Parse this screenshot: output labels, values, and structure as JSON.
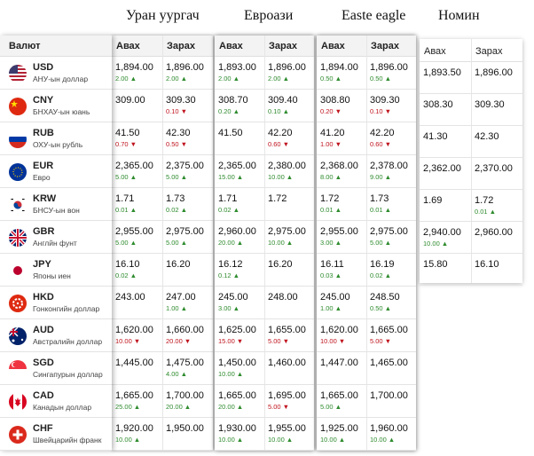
{
  "banks": [
    {
      "name": "Уран уургач"
    },
    {
      "name": "Евроази"
    },
    {
      "name": "Easte eagle"
    },
    {
      "name": "Номин"
    }
  ],
  "labels": {
    "currency_header": "Валют",
    "buy": "Авах",
    "sell": "Зарах"
  },
  "currencies": [
    {
      "code": "USD",
      "name": "АНУ-ын доллар",
      "flag": "us-flag-icon"
    },
    {
      "code": "CNY",
      "name": "БНХАУ-ын юань",
      "flag": "china-flag-icon"
    },
    {
      "code": "RUB",
      "name": "ОХУ-ын рубль",
      "flag": "russia-flag-icon"
    },
    {
      "code": "EUR",
      "name": "Евро",
      "flag": "eu-flag-icon"
    },
    {
      "code": "KRW",
      "name": "БНСУ-ын вон",
      "flag": "korea-flag-icon"
    },
    {
      "code": "GBR",
      "name": "Англйн фунт",
      "flag": "uk-flag-icon"
    },
    {
      "code": "JPY",
      "name": "Японы иен",
      "flag": "japan-flag-icon"
    },
    {
      "code": "HKD",
      "name": "Гонконгийн доллар",
      "flag": "hongkong-flag-icon"
    },
    {
      "code": "AUD",
      "name": "Австралийн доллар",
      "flag": "australia-flag-icon"
    },
    {
      "code": "SGD",
      "name": "Сингапурын доллар",
      "flag": "singapore-flag-icon"
    },
    {
      "code": "CAD",
      "name": "Канадын доллар",
      "flag": "canada-flag-icon"
    },
    {
      "code": "CHF",
      "name": "Швейцарийн франк",
      "flag": "swiss-flag-icon"
    }
  ],
  "rates": [
    [
      {
        "buy": "1,894.00",
        "bc": "2.00",
        "bd": "up",
        "sell": "1,896.00",
        "sc": "2.00",
        "sd": "up"
      },
      {
        "buy": "309.00",
        "bc": "",
        "bd": "",
        "sell": "309.30",
        "sc": "0.10",
        "sd": "down"
      },
      {
        "buy": "41.50",
        "bc": "0.70",
        "bd": "down",
        "sell": "42.30",
        "sc": "0.50",
        "sd": "down"
      },
      {
        "buy": "2,365.00",
        "bc": "5.00",
        "bd": "up",
        "sell": "2,375.00",
        "sc": "5.00",
        "sd": "up"
      },
      {
        "buy": "1.71",
        "bc": "0.01",
        "bd": "up",
        "sell": "1.73",
        "sc": "0.02",
        "sd": "up"
      },
      {
        "buy": "2,955.00",
        "bc": "5.00",
        "bd": "up",
        "sell": "2,975.00",
        "sc": "5.00",
        "sd": "up"
      },
      {
        "buy": "16.10",
        "bc": "0.02",
        "bd": "up",
        "sell": "16.20",
        "sc": "",
        "sd": ""
      },
      {
        "buy": "243.00",
        "bc": "",
        "bd": "",
        "sell": "247.00",
        "sc": "1.00",
        "sd": "up"
      },
      {
        "buy": "1,620.00",
        "bc": "10.00",
        "bd": "down",
        "sell": "1,660.00",
        "sc": "20.00",
        "sd": "down"
      },
      {
        "buy": "1,445.00",
        "bc": "",
        "bd": "",
        "sell": "1,475.00",
        "sc": "4.00",
        "sd": "up"
      },
      {
        "buy": "1,665.00",
        "bc": "25.00",
        "bd": "up",
        "sell": "1,700.00",
        "sc": "20.00",
        "sd": "up"
      },
      {
        "buy": "1,920.00",
        "bc": "10.00",
        "bd": "up",
        "sell": "1,950.00",
        "sc": "",
        "sd": ""
      }
    ],
    [
      {
        "buy": "1,893.00",
        "bc": "2.00",
        "bd": "up",
        "sell": "1,896.00",
        "sc": "2.00",
        "sd": "up"
      },
      {
        "buy": "308.70",
        "bc": "0.20",
        "bd": "up",
        "sell": "309.40",
        "sc": "0.10",
        "sd": "up"
      },
      {
        "buy": "41.50",
        "bc": "",
        "bd": "",
        "sell": "42.20",
        "sc": "0.60",
        "sd": "down"
      },
      {
        "buy": "2,365.00",
        "bc": "15.00",
        "bd": "up",
        "sell": "2,380.00",
        "sc": "10.00",
        "sd": "up"
      },
      {
        "buy": "1.71",
        "bc": "0.02",
        "bd": "up",
        "sell": "1.72",
        "sc": "",
        "sd": ""
      },
      {
        "buy": "2,960.00",
        "bc": "20.00",
        "bd": "up",
        "sell": "2,975.00",
        "sc": "10.00",
        "sd": "up"
      },
      {
        "buy": "16.12",
        "bc": "0.12",
        "bd": "up",
        "sell": "16.20",
        "sc": "",
        "sd": ""
      },
      {
        "buy": "245.00",
        "bc": "3.00",
        "bd": "up",
        "sell": "248.00",
        "sc": "",
        "sd": ""
      },
      {
        "buy": "1,625.00",
        "bc": "15.00",
        "bd": "down",
        "sell": "1,655.00",
        "sc": "5.00",
        "sd": "down"
      },
      {
        "buy": "1,450.00",
        "bc": "10.00",
        "bd": "up",
        "sell": "1,460.00",
        "sc": "",
        "sd": ""
      },
      {
        "buy": "1,665.00",
        "bc": "20.00",
        "bd": "up",
        "sell": "1,695.00",
        "sc": "5.00",
        "sd": "down"
      },
      {
        "buy": "1,930.00",
        "bc": "10.00",
        "bd": "up",
        "sell": "1,955.00",
        "sc": "10.00",
        "sd": "up"
      }
    ],
    [
      {
        "buy": "1,894.00",
        "bc": "0.50",
        "bd": "up",
        "sell": "1,896.00",
        "sc": "0.50",
        "sd": "up"
      },
      {
        "buy": "308.80",
        "bc": "0.20",
        "bd": "down",
        "sell": "309.30",
        "sc": "0.10",
        "sd": "down"
      },
      {
        "buy": "41.20",
        "bc": "1.00",
        "bd": "down",
        "sell": "42.20",
        "sc": "0.60",
        "sd": "down"
      },
      {
        "buy": "2,368.00",
        "bc": "8.00",
        "bd": "up",
        "sell": "2,378.00",
        "sc": "9.00",
        "sd": "up"
      },
      {
        "buy": "1.72",
        "bc": "0.01",
        "bd": "up",
        "sell": "1.73",
        "sc": "0.01",
        "sd": "up"
      },
      {
        "buy": "2,955.00",
        "bc": "3.00",
        "bd": "up",
        "sell": "2,975.00",
        "sc": "5.00",
        "sd": "up"
      },
      {
        "buy": "16.11",
        "bc": "0.03",
        "bd": "up",
        "sell": "16.19",
        "sc": "0.02",
        "sd": "up"
      },
      {
        "buy": "245.00",
        "bc": "1.00",
        "bd": "up",
        "sell": "248.50",
        "sc": "0.50",
        "sd": "up"
      },
      {
        "buy": "1,620.00",
        "bc": "10.00",
        "bd": "down",
        "sell": "1,665.00",
        "sc": "5.00",
        "sd": "down"
      },
      {
        "buy": "1,447.00",
        "bc": "",
        "bd": "",
        "sell": "1,465.00",
        "sc": "",
        "sd": ""
      },
      {
        "buy": "1,665.00",
        "bc": "5.00",
        "bd": "up",
        "sell": "1,700.00",
        "sc": "",
        "sd": ""
      },
      {
        "buy": "1,925.00",
        "bc": "10.00",
        "bd": "up",
        "sell": "1,960.00",
        "sc": "10.00",
        "sd": "up"
      }
    ],
    [
      {
        "buy": "1,893.50",
        "bc": "",
        "bd": "",
        "sell": "1,896.00",
        "sc": "",
        "sd": ""
      },
      {
        "buy": "308.30",
        "bc": "",
        "bd": "",
        "sell": "309.30",
        "sc": "",
        "sd": ""
      },
      {
        "buy": "41.30",
        "bc": "",
        "bd": "",
        "sell": "42.30",
        "sc": "",
        "sd": ""
      },
      {
        "buy": "2,362.00",
        "bc": "",
        "bd": "",
        "sell": "2,370.00",
        "sc": "",
        "sd": ""
      },
      {
        "buy": "1.69",
        "bc": "",
        "bd": "",
        "sell": "1.72",
        "sc": "0.01",
        "sd": "up"
      },
      {
        "buy": "2,940.00",
        "bc": "10.00",
        "bd": "up",
        "sell": "2,960.00",
        "sc": "",
        "sd": ""
      },
      {
        "buy": "15.80",
        "bc": "",
        "bd": "",
        "sell": "16.10",
        "sc": "",
        "sd": ""
      }
    ]
  ]
}
